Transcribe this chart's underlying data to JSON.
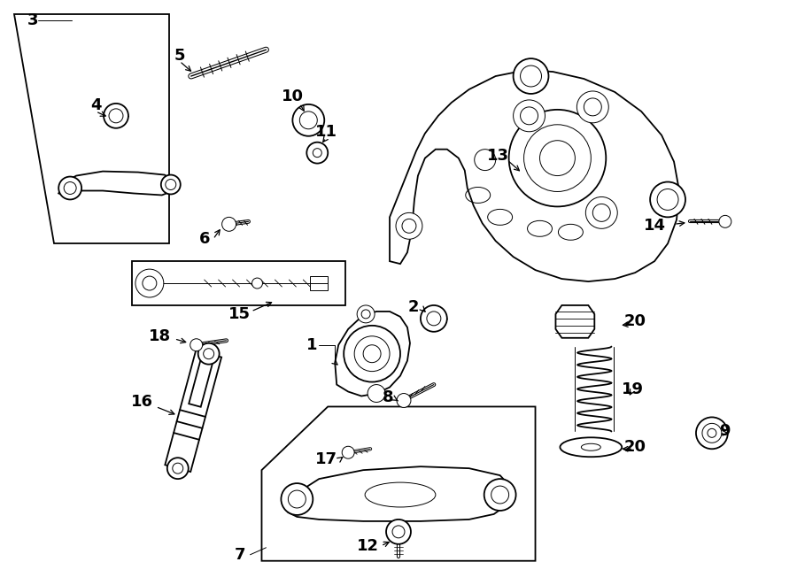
{
  "bg_color": "#ffffff",
  "line_color": "#000000",
  "lw_main": 1.3,
  "lw_thin": 0.7,
  "label_fontsize": 13,
  "fig_width": 9.0,
  "fig_height": 6.61,
  "dpi": 100
}
